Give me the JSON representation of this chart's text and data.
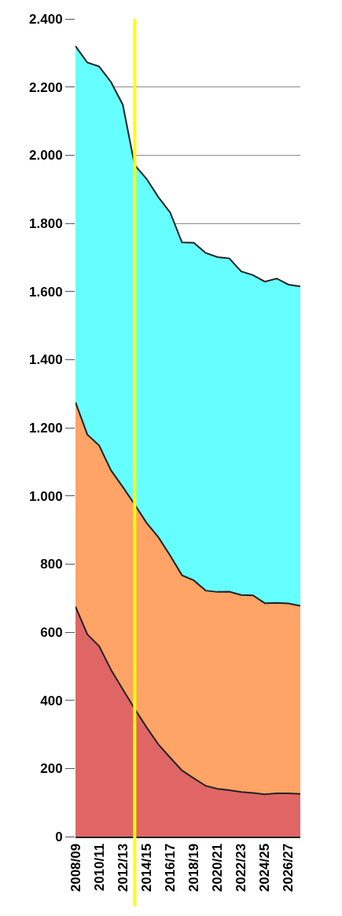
{
  "chart_data": {
    "type": "area",
    "stacked": true,
    "categories": [
      "2008/09",
      null,
      "2010/11",
      null,
      "2012/13",
      null,
      "2014/15",
      null,
      "2016/17",
      null,
      "2018/19",
      null,
      "2020/21",
      null,
      "2022/23",
      null,
      "2024/25",
      null,
      "2026/27",
      null
    ],
    "series": [
      {
        "color": "#e06666",
        "values": [
          675,
          594,
          559,
          490,
          432,
          375,
          321,
          271,
          232,
          194,
          171,
          149,
          140,
          136,
          131,
          128,
          124,
          127,
          127,
          125
        ]
      },
      {
        "color": "#ffa366",
        "values": [
          600,
          586,
          589,
          585,
          594,
          600,
          600,
          608,
          593,
          573,
          581,
          573,
          578,
          583,
          578,
          580,
          561,
          559,
          557,
          552
        ]
      },
      {
        "color": "#66ffff",
        "values": [
          1045,
          1092,
          1112,
          1140,
          1122,
          996,
          1010,
          998,
          1007,
          977,
          991,
          991,
          983,
          978,
          950,
          940,
          944,
          952,
          936,
          938
        ]
      }
    ],
    "ylim": [
      0,
      2400
    ],
    "yticks": [
      0,
      200,
      400,
      600,
      800,
      {
        "value": 1000,
        "label": "1.000"
      },
      {
        "value": 1200,
        "label": "1.200"
      },
      {
        "value": 1400,
        "label": "1.400"
      },
      {
        "value": 1600,
        "label": "1.600"
      },
      {
        "value": 1800,
        "label": "1.800"
      },
      {
        "value": 2000,
        "label": "2.000"
      },
      {
        "value": 2200,
        "label": "2.200"
      },
      {
        "value": 2400,
        "label": "2.400"
      }
    ],
    "grid": "y"
  }
}
